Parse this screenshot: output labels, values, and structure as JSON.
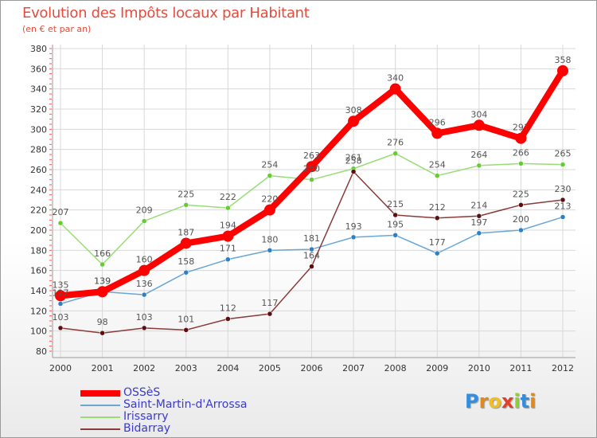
{
  "header": {
    "title": "Evolution des Impôts locaux par Habitant",
    "subtitle": "(en € et par an)"
  },
  "colors": {
    "title": "#e64b3b",
    "grid": "#d8d8d8",
    "legend_text": "#3a3ad0"
  },
  "chart_data": {
    "type": "line",
    "title": "Evolution des Impôts locaux par Habitant",
    "subtitle": "(en € et par an)",
    "xlabel": "",
    "ylabel": "",
    "ylim": [
      80,
      380
    ],
    "yticks": [
      "80",
      "100",
      "120",
      "140",
      "160",
      "180",
      "200",
      "220",
      "240",
      "260",
      "280",
      "300",
      "320",
      "340",
      "360",
      "380"
    ],
    "categories": [
      "2000",
      "2001",
      "2002",
      "2003",
      "2004",
      "2005",
      "2006",
      "2007",
      "2008",
      "2009",
      "2010",
      "2011",
      "2012"
    ],
    "grid": true,
    "legend_position": "bottom-left",
    "series": [
      {
        "name": "OSSèS",
        "color": "#ff0000",
        "marker_color": "#ff0000",
        "emphasis": true,
        "values": [
          135,
          139,
          160,
          187,
          194,
          220,
          263,
          308,
          340,
          296,
          304,
          291,
          358
        ],
        "labels": [
          "135",
          "139",
          "160",
          "187",
          "194",
          "220",
          "263",
          "308",
          "340",
          "296",
          "304",
          "291",
          "358"
        ]
      },
      {
        "name": "Saint-Martin-d'Arrossa",
        "color": "#6aa6d6",
        "marker_color": "#2f7fc1",
        "emphasis": false,
        "values": [
          127,
          139,
          136,
          158,
          171,
          180,
          181,
          193,
          195,
          177,
          197,
          200,
          213
        ],
        "labels": [
          "127",
          "139",
          "136",
          "158",
          "171",
          "180",
          "181",
          "193",
          "195",
          "177",
          "197",
          "200",
          "213"
        ]
      },
      {
        "name": "Irissarry",
        "color": "#99dd77",
        "marker_color": "#66cc33",
        "emphasis": false,
        "values": [
          207,
          166,
          209,
          225,
          222,
          254,
          250,
          261,
          276,
          254,
          264,
          266,
          265
        ],
        "labels": [
          "207",
          "166",
          "209",
          "225",
          "222",
          "254",
          "250",
          "261",
          "276",
          "254",
          "264",
          "266",
          "265"
        ]
      },
      {
        "name": "Bidarray",
        "color": "#8b3a3a",
        "marker_color": "#5a1010",
        "emphasis": false,
        "values": [
          103,
          98,
          103,
          101,
          112,
          117,
          164,
          258,
          215,
          212,
          214,
          225,
          230
        ],
        "labels": [
          "103",
          "98",
          "103",
          "101",
          "112",
          "117",
          "164",
          "258",
          "215",
          "212",
          "214",
          "225",
          "230"
        ]
      }
    ]
  },
  "legend": {
    "items": [
      "OSSèS",
      "Saint-Martin-d'Arrossa",
      "Irissarry",
      "Bidarray"
    ]
  },
  "logo": {
    "letters": [
      "P",
      "r",
      "o",
      "x",
      "i",
      "t",
      "i"
    ],
    "colors": [
      "#2f8fe0",
      "#e08a1e",
      "#f0c020",
      "#e0402a",
      "#8fcf3a",
      "#2f8fe0",
      "#e08a1e"
    ]
  }
}
